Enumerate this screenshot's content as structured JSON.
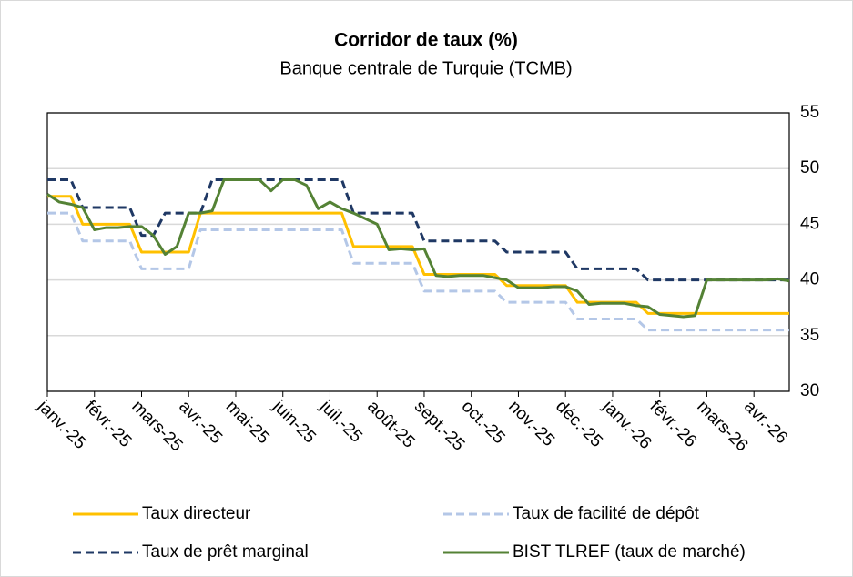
{
  "chart_data": {
    "type": "line",
    "title": "Corridor de taux (%)",
    "subtitle": "Banque centrale de Turquie (TCMB)",
    "categories": [
      "janv.-25",
      null,
      null,
      null,
      "févr.-25",
      null,
      null,
      null,
      "mars-25",
      null,
      null,
      null,
      "avr.-25",
      null,
      null,
      null,
      "mai-25",
      null,
      null,
      null,
      "juin-25",
      null,
      null,
      null,
      "juil.-25",
      null,
      null,
      null,
      "août-25",
      null,
      null,
      null,
      "sept.-25",
      null,
      null,
      null,
      "oct.-25",
      null,
      null,
      null,
      "nov.-25",
      null,
      null,
      null,
      "déc.-25",
      null,
      null,
      null,
      "janv.-26",
      null,
      null,
      null,
      "févr.-26",
      null,
      null,
      null,
      "mars-26",
      null,
      null,
      null,
      "avr.-26",
      null,
      null,
      null
    ],
    "series": [
      {
        "name": "Taux directeur",
        "color": "#ffc000",
        "dash": false,
        "values": [
          47.5,
          47.5,
          47.5,
          45,
          45,
          45,
          45,
          45,
          42.5,
          42.5,
          42.5,
          42.5,
          42.5,
          46,
          46,
          46,
          46,
          46,
          46,
          46,
          46,
          46,
          46,
          46,
          46,
          46,
          43,
          43,
          43,
          43,
          43,
          43,
          40.5,
          40.5,
          40.5,
          40.5,
          40.5,
          40.5,
          40.5,
          39.5,
          39.5,
          39.5,
          39.5,
          39.5,
          39.5,
          38,
          38,
          38,
          38,
          38,
          38,
          37,
          37,
          37,
          37,
          37,
          37,
          37,
          37,
          37,
          37,
          37,
          37,
          37
        ]
      },
      {
        "name": "Taux de facilité de dépôt",
        "color": "#b4c7e7",
        "dash": true,
        "values": [
          46,
          46,
          46,
          43.5,
          43.5,
          43.5,
          43.5,
          43.5,
          41,
          41,
          41,
          41,
          41,
          44.5,
          44.5,
          44.5,
          44.5,
          44.5,
          44.5,
          44.5,
          44.5,
          44.5,
          44.5,
          44.5,
          44.5,
          44.5,
          41.5,
          41.5,
          41.5,
          41.5,
          41.5,
          41.5,
          39,
          39,
          39,
          39,
          39,
          39,
          39,
          38,
          38,
          38,
          38,
          38,
          38,
          36.5,
          36.5,
          36.5,
          36.5,
          36.5,
          36.5,
          35.5,
          35.5,
          35.5,
          35.5,
          35.5,
          35.5,
          35.5,
          35.5,
          35.5,
          35.5,
          35.5,
          35.5,
          35.5
        ]
      },
      {
        "name": "Taux de prêt marginal",
        "color": "#1f3864",
        "dash": true,
        "values": [
          49,
          49,
          49,
          46.5,
          46.5,
          46.5,
          46.5,
          46.5,
          44,
          44,
          46,
          46,
          46,
          46,
          49,
          49,
          49,
          49,
          49,
          49,
          49,
          49,
          49,
          49,
          49,
          49,
          46,
          46,
          46,
          46,
          46,
          46,
          43.5,
          43.5,
          43.5,
          43.5,
          43.5,
          43.5,
          43.5,
          42.5,
          42.5,
          42.5,
          42.5,
          42.5,
          42.5,
          41,
          41,
          41,
          41,
          41,
          41,
          40,
          40,
          40,
          40,
          40,
          40,
          40,
          40,
          40,
          40,
          40,
          40,
          40
        ]
      },
      {
        "name": "BIST TLREF (taux de marché)",
        "color": "#548235",
        "dash": false,
        "values": [
          47.7,
          47,
          46.8,
          46.5,
          44.5,
          44.7,
          44.7,
          44.8,
          44.8,
          44,
          42.3,
          43,
          46,
          46,
          46.2,
          49,
          49,
          49,
          49,
          48,
          49,
          49,
          48.5,
          46.4,
          47,
          46.4,
          46,
          45.5,
          45,
          42.7,
          42.8,
          42.7,
          42.8,
          40.4,
          40.3,
          40.4,
          40.4,
          40.4,
          40.2,
          40,
          39.3,
          39.3,
          39.3,
          39.4,
          39.4,
          39,
          37.8,
          37.9,
          37.9,
          37.9,
          37.7,
          37.6,
          36.9,
          36.8,
          36.7,
          36.8,
          40,
          40,
          40,
          40,
          40,
          40,
          40.1,
          39.9
        ]
      }
    ],
    "ylim": [
      30,
      55
    ],
    "yticks": [
      30,
      35,
      40,
      45,
      50,
      55
    ],
    "grid": true
  }
}
